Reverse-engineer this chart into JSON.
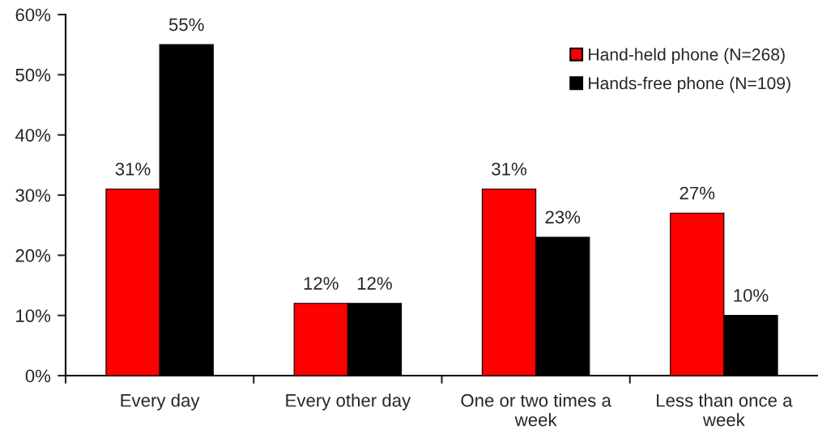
{
  "chart_data": {
    "type": "bar",
    "categories": [
      "Every day",
      "Every other day",
      "One or two times a week",
      "Less than once a week"
    ],
    "series": [
      {
        "name": "Hand-held phone (N=268)",
        "color": "#ff0000",
        "values": [
          31,
          12,
          31,
          27
        ],
        "value_labels": [
          "31%",
          "12%",
          "31%",
          "27%"
        ]
      },
      {
        "name": "Hands-free phone (N=109)",
        "color": "#000000",
        "values": [
          55,
          12,
          23,
          10
        ],
        "value_labels": [
          "55%",
          "12%",
          "23%",
          "10%"
        ]
      }
    ],
    "ylim": [
      0,
      60
    ],
    "yticks": [
      {
        "value": 0,
        "label": "0%"
      },
      {
        "value": 10,
        "label": "10%"
      },
      {
        "value": 20,
        "label": "20%"
      },
      {
        "value": 30,
        "label": "30%"
      },
      {
        "value": 40,
        "label": "40%"
      },
      {
        "value": 50,
        "label": "50%"
      },
      {
        "value": 60,
        "label": "60%"
      }
    ],
    "grid": false,
    "legend": "top right"
  }
}
